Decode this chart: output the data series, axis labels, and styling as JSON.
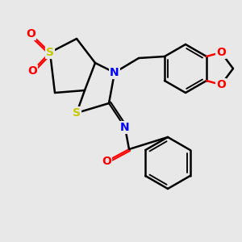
{
  "bg_color": "#e8e8e8",
  "atom_colors": {
    "S": "#c8c800",
    "N": "#0000ff",
    "O": "#ff0000",
    "C": "#000000"
  },
  "line_color": "#000000",
  "line_width": 1.8,
  "font_size_atom": 10
}
